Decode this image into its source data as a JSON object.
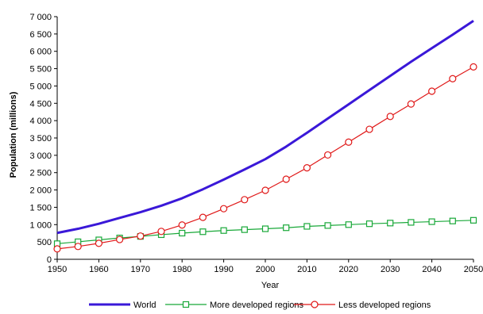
{
  "chart_data": {
    "type": "line",
    "xlabel": "Year",
    "ylabel": "Population (millions)",
    "x": [
      1950,
      1955,
      1960,
      1965,
      1970,
      1975,
      1980,
      1985,
      1990,
      1995,
      2000,
      2005,
      2010,
      2015,
      2020,
      2025,
      2030,
      2035,
      2040,
      2045,
      2050
    ],
    "xlim": [
      1950,
      2050
    ],
    "ylim": [
      0,
      7000
    ],
    "x_ticks": [
      1950,
      1960,
      1970,
      1980,
      1990,
      2000,
      2010,
      2020,
      2030,
      2040,
      2050
    ],
    "x_tick_labels": [
      "1950",
      "1960",
      "1970",
      "1980",
      "1990",
      "2000",
      "2010",
      "2020",
      "2030",
      "2040",
      "2050"
    ],
    "y_ticks": [
      0,
      500,
      1000,
      1500,
      2000,
      2500,
      3000,
      3500,
      4000,
      4500,
      5000,
      5500,
      6000,
      6500,
      7000
    ],
    "y_tick_labels": [
      "0",
      "500",
      "1 000",
      "1 500",
      "2 000",
      "2 500",
      "3 000",
      "3 500",
      "4 000",
      "4 500",
      "5 000",
      "5 500",
      "6 000",
      "6 500",
      "7 000"
    ],
    "grid": false,
    "legend_position": "bottom",
    "series": [
      {
        "name": "World",
        "color": "#3a18d8",
        "marker": "none",
        "values": [
          760,
          880,
          1025,
          1195,
          1360,
          1545,
          1760,
          2020,
          2300,
          2590,
          2890,
          3250,
          3650,
          4060,
          4470,
          4880,
          5290,
          5700,
          6090,
          6480,
          6880
        ]
      },
      {
        "name": "More developed regions",
        "color": "#18a838",
        "marker": "square",
        "values": [
          450,
          505,
          560,
          615,
          660,
          710,
          755,
          795,
          830,
          855,
          880,
          910,
          950,
          975,
          1000,
          1025,
          1045,
          1065,
          1085,
          1105,
          1125
        ]
      },
      {
        "name": "Less developed regions",
        "color": "#e01818",
        "marker": "circle",
        "values": [
          300,
          370,
          460,
          570,
          670,
          805,
          990,
          1210,
          1460,
          1720,
          1990,
          2310,
          2640,
          3010,
          3380,
          3750,
          4120,
          4480,
          4850,
          5210,
          5550
        ]
      }
    ]
  }
}
